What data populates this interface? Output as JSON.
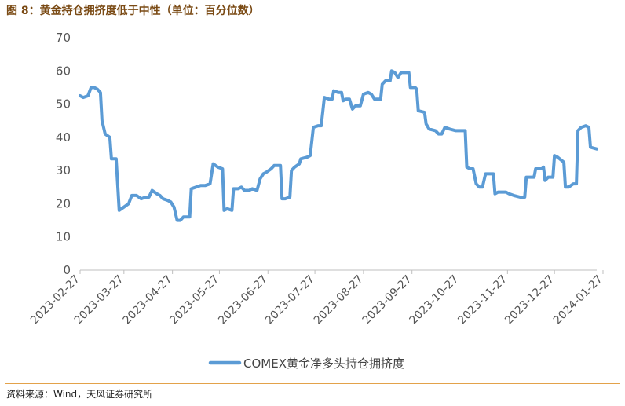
{
  "header": {
    "title": "图 8：黄金持仓拥挤度低于中性（单位：百分位数）"
  },
  "footer": {
    "source": "资料来源：Wind，天风证券研究所"
  },
  "colors": {
    "series": "#5B9BD5",
    "rule": "#E3A24A",
    "title": "#7A4A14",
    "axis": "#BFBFBF"
  },
  "chart_data": {
    "type": "line",
    "title": "",
    "xlabel": "",
    "ylabel": "",
    "ylim": [
      0,
      70
    ],
    "yticks": [
      0,
      10,
      20,
      30,
      40,
      50,
      60,
      70
    ],
    "grid": false,
    "legend_position": "bottom",
    "xticks": [
      "2023-02-27",
      "2023-03-27",
      "2023-04-27",
      "2023-05-27",
      "2023-06-27",
      "2023-07-27",
      "2023-08-27",
      "2023-09-27",
      "2023-10-27",
      "2023-11-27",
      "2023-12-27",
      "2024-01-27"
    ],
    "series": [
      {
        "name": "COMEX黄金净多头持仓拥挤度",
        "points": [
          [
            "2023-02-27",
            52.5
          ],
          [
            "2023-03-01",
            52
          ],
          [
            "2023-03-04",
            52.5
          ],
          [
            "2023-03-06",
            55
          ],
          [
            "2023-03-08",
            55
          ],
          [
            "2023-03-10",
            54.5
          ],
          [
            "2023-03-12",
            53.5
          ],
          [
            "2023-03-13",
            45
          ],
          [
            "2023-03-15",
            41
          ],
          [
            "2023-03-18",
            40
          ],
          [
            "2023-03-19",
            33.5
          ],
          [
            "2023-03-22",
            33.5
          ],
          [
            "2023-03-24",
            18
          ],
          [
            "2023-03-27",
            19
          ],
          [
            "2023-03-30",
            20
          ],
          [
            "2023-04-01",
            22.5
          ],
          [
            "2023-04-04",
            22.5
          ],
          [
            "2023-04-07",
            21.5
          ],
          [
            "2023-04-10",
            22
          ],
          [
            "2023-04-12",
            22
          ],
          [
            "2023-04-14",
            24
          ],
          [
            "2023-04-17",
            23
          ],
          [
            "2023-04-19",
            22.5
          ],
          [
            "2023-04-21",
            21.5
          ],
          [
            "2023-04-24",
            21
          ],
          [
            "2023-04-26",
            20.5
          ],
          [
            "2023-04-28",
            19
          ],
          [
            "2023-04-30",
            15
          ],
          [
            "2023-05-02",
            15
          ],
          [
            "2023-05-04",
            16
          ],
          [
            "2023-05-08",
            16
          ],
          [
            "2023-05-09",
            24.5
          ],
          [
            "2023-05-12",
            25
          ],
          [
            "2023-05-15",
            25.5
          ],
          [
            "2023-05-18",
            25.5
          ],
          [
            "2023-05-21",
            26
          ],
          [
            "2023-05-23",
            32
          ],
          [
            "2023-05-26",
            31
          ],
          [
            "2023-05-29",
            30.5
          ],
          [
            "2023-05-30",
            18
          ],
          [
            "2023-06-01",
            18.5
          ],
          [
            "2023-06-04",
            18
          ],
          [
            "2023-06-05",
            24.5
          ],
          [
            "2023-06-08",
            24.5
          ],
          [
            "2023-06-10",
            25
          ],
          [
            "2023-06-12",
            24
          ],
          [
            "2023-06-15",
            24
          ],
          [
            "2023-06-17",
            24.5
          ],
          [
            "2023-06-20",
            24
          ],
          [
            "2023-06-22",
            27.5
          ],
          [
            "2023-06-24",
            29
          ],
          [
            "2023-06-26",
            29.5
          ],
          [
            "2023-06-29",
            30.5
          ],
          [
            "2023-07-01",
            31.5
          ],
          [
            "2023-07-05",
            31.5
          ],
          [
            "2023-07-06",
            21.5
          ],
          [
            "2023-07-08",
            21.5
          ],
          [
            "2023-07-11",
            22
          ],
          [
            "2023-07-12",
            30
          ],
          [
            "2023-07-14",
            31
          ],
          [
            "2023-07-17",
            32
          ],
          [
            "2023-07-18",
            33.5
          ],
          [
            "2023-07-22",
            34
          ],
          [
            "2023-07-24",
            34.5
          ],
          [
            "2023-07-26",
            43
          ],
          [
            "2023-07-29",
            43.5
          ],
          [
            "2023-07-31",
            43.5
          ],
          [
            "2023-08-02",
            52
          ],
          [
            "2023-08-05",
            51.5
          ],
          [
            "2023-08-07",
            51.5
          ],
          [
            "2023-08-08",
            54
          ],
          [
            "2023-08-11",
            53.5
          ],
          [
            "2023-08-13",
            53.5
          ],
          [
            "2023-08-14",
            51
          ],
          [
            "2023-08-16",
            51.5
          ],
          [
            "2023-08-18",
            51.5
          ],
          [
            "2023-08-20",
            48.5
          ],
          [
            "2023-08-22",
            49.5
          ],
          [
            "2023-08-25",
            49.5
          ],
          [
            "2023-08-27",
            53
          ],
          [
            "2023-08-30",
            53.5
          ],
          [
            "2023-09-01",
            53
          ],
          [
            "2023-09-03",
            51.5
          ],
          [
            "2023-09-07",
            51.5
          ],
          [
            "2023-09-08",
            56
          ],
          [
            "2023-09-10",
            57
          ],
          [
            "2023-09-13",
            57
          ],
          [
            "2023-09-14",
            60
          ],
          [
            "2023-09-16",
            59.5
          ],
          [
            "2023-09-18",
            58
          ],
          [
            "2023-09-20",
            59.5
          ],
          [
            "2023-09-25",
            59.5
          ],
          [
            "2023-09-26",
            55
          ],
          [
            "2023-09-29",
            55
          ],
          [
            "2023-09-30",
            54.5
          ],
          [
            "2023-10-01",
            48
          ],
          [
            "2023-10-05",
            47.5
          ],
          [
            "2023-10-06",
            44
          ],
          [
            "2023-10-08",
            42.5
          ],
          [
            "2023-10-12",
            42
          ],
          [
            "2023-10-14",
            41
          ],
          [
            "2023-10-16",
            41
          ],
          [
            "2023-10-18",
            43
          ],
          [
            "2023-10-21",
            42.5
          ],
          [
            "2023-10-25",
            42
          ],
          [
            "2023-10-27",
            42
          ],
          [
            "2023-10-31",
            42
          ],
          [
            "2023-11-01",
            31
          ],
          [
            "2023-11-03",
            30.5
          ],
          [
            "2023-11-05",
            30.5
          ],
          [
            "2023-11-07",
            26
          ],
          [
            "2023-11-09",
            25
          ],
          [
            "2023-11-11",
            25
          ],
          [
            "2023-11-13",
            29
          ],
          [
            "2023-11-18",
            29
          ],
          [
            "2023-11-19",
            23
          ],
          [
            "2023-11-21",
            23.5
          ],
          [
            "2023-11-26",
            23.5
          ],
          [
            "2023-11-28",
            23
          ],
          [
            "2023-12-01",
            22.5
          ],
          [
            "2023-12-05",
            22
          ],
          [
            "2023-12-08",
            22
          ],
          [
            "2023-12-09",
            28
          ],
          [
            "2023-12-12",
            28
          ],
          [
            "2023-12-14",
            28
          ],
          [
            "2023-12-15",
            30.5
          ],
          [
            "2023-12-19",
            30.5
          ],
          [
            "2023-12-20",
            31
          ],
          [
            "2023-12-21",
            27
          ],
          [
            "2023-12-23",
            28
          ],
          [
            "2023-12-26",
            28
          ],
          [
            "2023-12-27",
            34.5
          ],
          [
            "2023-12-29",
            34
          ],
          [
            "2024-01-02",
            32.5
          ],
          [
            "2024-01-03",
            25
          ],
          [
            "2024-01-05",
            25
          ],
          [
            "2024-01-08",
            26
          ],
          [
            "2024-01-10",
            26
          ],
          [
            "2024-01-11",
            42
          ],
          [
            "2024-01-13",
            43
          ],
          [
            "2024-01-16",
            43.5
          ],
          [
            "2024-01-18",
            43
          ],
          [
            "2024-01-19",
            37
          ],
          [
            "2024-01-23",
            36.5
          ]
        ]
      }
    ]
  }
}
